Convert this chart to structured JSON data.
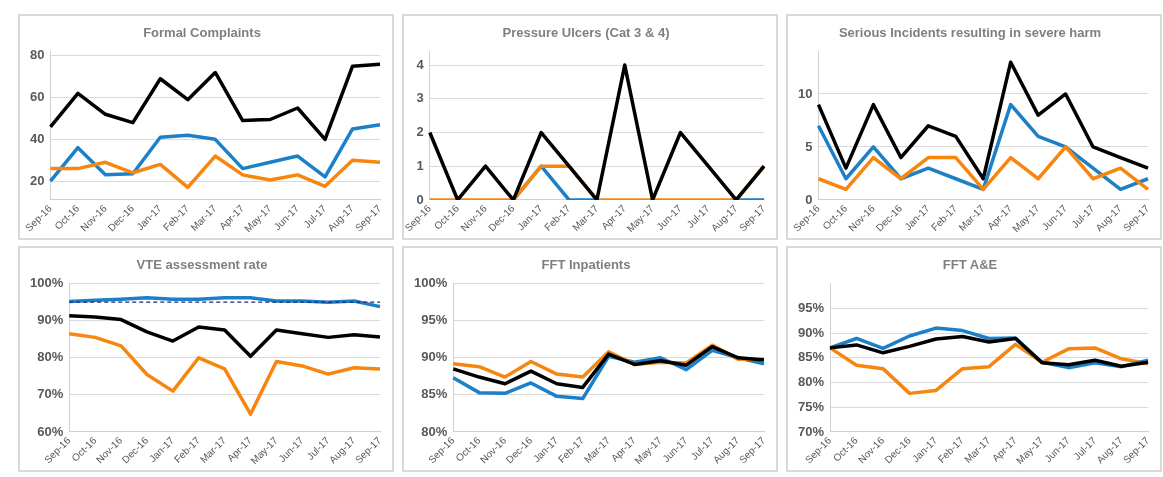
{
  "chart_data": [
    {
      "type": "line",
      "title": "Formal Complaints",
      "categories": [
        "Sep-16",
        "Oct-16",
        "Nov-16",
        "Dec-16",
        "Jan-17",
        "Feb-17",
        "Mar-17",
        "Apr-17",
        "May-17",
        "Jun-17",
        "Jul-17",
        "Aug-17",
        "Sep-17"
      ],
      "series": [
        {
          "color": "#000000",
          "values": [
            46,
            62,
            52,
            48,
            69,
            59,
            72,
            49,
            49.5,
            55,
            40,
            75,
            76
          ]
        },
        {
          "color": "#1b80c8",
          "values": [
            20,
            36,
            23,
            23.5,
            41,
            42,
            40,
            26,
            29,
            32,
            22,
            45,
            47
          ]
        },
        {
          "color": "#f7860f",
          "values": [
            26,
            26,
            29,
            24,
            28,
            17,
            32,
            23,
            20.5,
            23,
            17.5,
            30,
            29
          ]
        }
      ],
      "ylim": [
        11,
        82
      ],
      "yticks": [
        20,
        40,
        60,
        80
      ],
      "grid": "y"
    },
    {
      "type": "line",
      "title": "Pressure Ulcers (Cat 3 & 4)",
      "categories": [
        "Sep-16",
        "Oct-16",
        "Nov-16",
        "Dec-16",
        "Jan-17",
        "Feb-17",
        "Mar-17",
        "Apr-17",
        "May-17",
        "Jun-17",
        "Jul-17",
        "Aug-17",
        "Sep-17"
      ],
      "series": [
        {
          "color": "#1b80c8",
          "values": [
            null,
            null,
            null,
            0,
            1,
            0,
            0,
            null,
            null,
            null,
            null,
            0,
            0
          ]
        },
        {
          "color": "#f7860f",
          "values": [
            0,
            0,
            0,
            0,
            1,
            1,
            0,
            0,
            0,
            0,
            0,
            0,
            1
          ]
        },
        {
          "color": "#000000",
          "values": [
            2,
            0,
            1,
            0,
            2,
            1,
            0,
            4,
            0,
            2,
            1,
            0,
            1
          ]
        }
      ],
      "ylim": [
        0,
        4.4
      ],
      "yticks": [
        0,
        1,
        2,
        3,
        4
      ],
      "grid": "y"
    },
    {
      "type": "line",
      "title": "Serious Incidents resulting in severe harm",
      "categories": [
        "Sep-16",
        "Oct-16",
        "Nov-16",
        "Dec-16",
        "Jan-17",
        "Feb-17",
        "Mar-17",
        "Apr-17",
        "May-17",
        "Jun-17",
        "Jul-17",
        "Aug-17",
        "Sep-17"
      ],
      "series": [
        {
          "color": "#000000",
          "values": [
            9,
            3,
            9,
            4,
            7,
            6,
            2,
            13,
            8,
            10,
            5,
            4,
            3
          ]
        },
        {
          "color": "#1b80c8",
          "values": [
            7,
            2,
            5,
            2,
            3,
            2,
            1,
            9,
            6,
            5,
            3,
            1,
            2
          ]
        },
        {
          "color": "#f7860f",
          "values": [
            2,
            1,
            4,
            2,
            4,
            4,
            1,
            4,
            2,
            5,
            2,
            3,
            1
          ]
        }
      ],
      "ylim": [
        0,
        14
      ],
      "yticks": [
        0,
        5,
        10
      ],
      "grid": "y"
    },
    {
      "type": "line",
      "title": "VTE assessment rate",
      "categories": [
        "Sep-16",
        "Oct-16",
        "Nov-16",
        "Dec-16",
        "Jan-17",
        "Feb-17",
        "Mar-17",
        "Apr-17",
        "May-17",
        "Jun-17",
        "Jul-17",
        "Aug-17",
        "Sep-17"
      ],
      "series": [
        {
          "color": "#1b80c8",
          "values": [
            95.2,
            95.5,
            95.8,
            96.2,
            95.8,
            95.8,
            96.2,
            96.2,
            95.3,
            95.3,
            95,
            95.3,
            93.8
          ]
        },
        {
          "color": "#000000",
          "values": [
            91.3,
            91,
            90.3,
            87,
            84.5,
            88.3,
            87.5,
            80.4,
            87.5,
            86.5,
            85.5,
            86.2,
            85.6
          ]
        },
        {
          "color": "#f7860f",
          "values": [
            86.5,
            85.5,
            83.2,
            75.5,
            71,
            80,
            77,
            64.8,
            79,
            77.8,
            75.6,
            77.3,
            77
          ]
        }
      ],
      "ylim": [
        60,
        100
      ],
      "yticks": [
        {
          "value": 60,
          "label": "60%"
        },
        {
          "value": 70,
          "label": "70%"
        },
        {
          "value": 80,
          "label": "80%"
        },
        {
          "value": 90,
          "label": "90%"
        },
        {
          "value": 100,
          "label": "100%"
        }
      ],
      "grid": "y",
      "ref_lines": [
        {
          "axis": "y",
          "value": 95,
          "color": "#1f2a6b",
          "line_style": "dashed"
        }
      ]
    },
    {
      "type": "line",
      "title": "FFT Inpatients",
      "categories": [
        "Sep-16",
        "Oct-16",
        "Nov-16",
        "Dec-16",
        "Jan-17",
        "Feb-17",
        "Mar-17",
        "Apr-17",
        "May-17",
        "Jun-17",
        "Jul-17",
        "Aug-17",
        "Sep-17"
      ],
      "series": [
        {
          "color": "#1b80c8",
          "values": [
            87.3,
            85.3,
            85.2,
            86.6,
            84.8,
            84.5,
            90.2,
            89.4,
            90,
            88.4,
            91,
            90,
            89.2
          ]
        },
        {
          "color": "#f7860f",
          "values": [
            89.2,
            88.8,
            87.4,
            89.5,
            87.8,
            87.4,
            90.8,
            89.1,
            89.4,
            89.3,
            91.7,
            89.8,
            89.8
          ]
        },
        {
          "color": "#000000",
          "values": [
            88.5,
            87.4,
            86.5,
            88.2,
            86.5,
            86,
            90.5,
            89.1,
            89.6,
            89,
            91.5,
            90,
            89.7
          ]
        }
      ],
      "ylim": [
        80,
        100
      ],
      "yticks": [
        {
          "value": 80,
          "label": "80%"
        },
        {
          "value": 85,
          "label": "85%"
        },
        {
          "value": 90,
          "label": "90%"
        },
        {
          "value": 95,
          "label": "95%"
        },
        {
          "value": 100,
          "label": "100%"
        }
      ],
      "grid": "y"
    },
    {
      "type": "line",
      "title": "FFT A&E",
      "categories": [
        "Sep-16",
        "Oct-16",
        "Nov-16",
        "Dec-16",
        "Jan-17",
        "Feb-17",
        "Mar-17",
        "Apr-17",
        "May-17",
        "Jun-17",
        "Jul-17",
        "Aug-17",
        "Sep-17"
      ],
      "series": [
        {
          "color": "#f7860f",
          "values": [
            87,
            83.5,
            82.8,
            77.8,
            78.4,
            82.8,
            83.2,
            87.7,
            84.1,
            86.8,
            87,
            84.8,
            83.8
          ]
        },
        {
          "color": "#1b80c8",
          "values": [
            87,
            88.9,
            86.9,
            89.4,
            91,
            90.5,
            88.9,
            89,
            84.1,
            83,
            84,
            83.2,
            84.5
          ]
        },
        {
          "color": "#000000",
          "values": [
            87,
            87.6,
            86,
            87.3,
            88.8,
            89.3,
            88.2,
            88.9,
            84,
            83.6,
            84.5,
            83.3,
            84.1
          ]
        }
      ],
      "ylim": [
        70,
        100
      ],
      "yticks": [
        {
          "value": 70,
          "label": "70%"
        },
        {
          "value": 75,
          "label": "75%"
        },
        {
          "value": 80,
          "label": "80%"
        },
        {
          "value": 85,
          "label": "85%"
        },
        {
          "value": 90,
          "label": "90%"
        },
        {
          "value": 95,
          "label": "95%"
        }
      ],
      "grid": "y"
    }
  ]
}
